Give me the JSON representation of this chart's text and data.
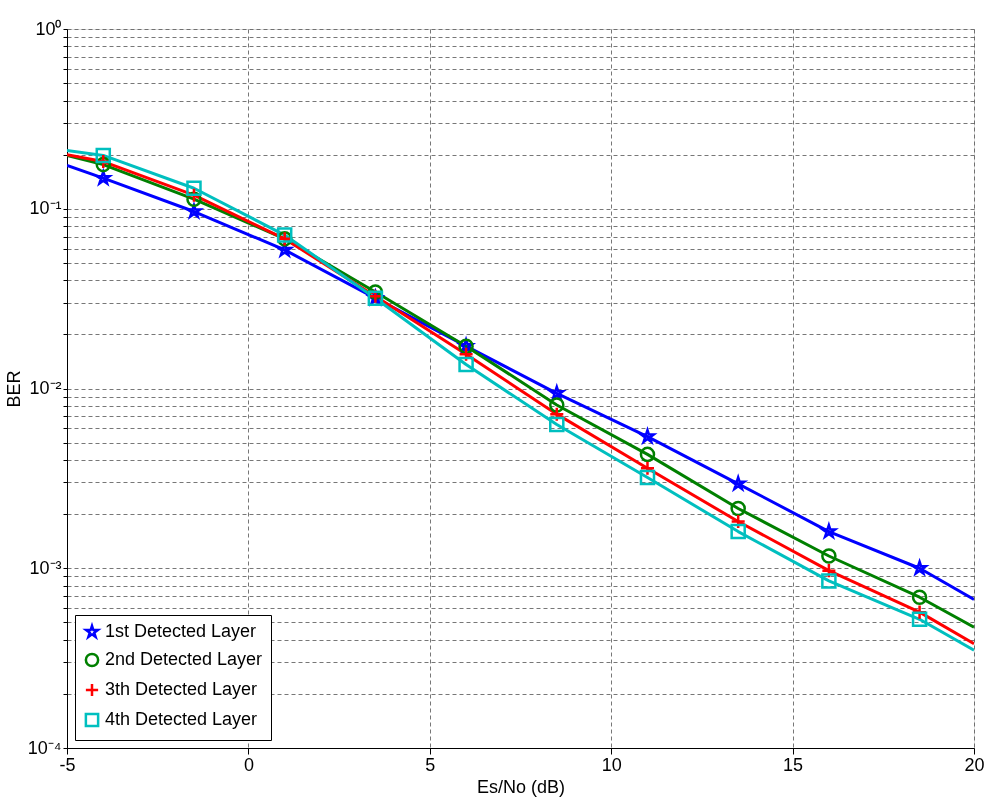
{
  "chart_data": {
    "type": "line",
    "xlabel": "Es/No  (dB)",
    "ylabel": "BER",
    "log": "y",
    "grid": true,
    "legend": "bottom left",
    "line_style": "solid",
    "x": [
      -5,
      -4,
      -1.5,
      1,
      3.5,
      6,
      8.5,
      11,
      13.5,
      16,
      18.5,
      20
    ],
    "xlim": [
      -5,
      20
    ],
    "xticks": [
      -5,
      0,
      5,
      10,
      15,
      20
    ],
    "ylim": [
      0.0001,
      1
    ],
    "yticks": [
      {
        "value": 0.0001,
        "label": "10⁻⁴"
      },
      {
        "value": 0.0002,
        "label": null
      },
      {
        "value": 0.0003,
        "label": null
      },
      {
        "value": 0.0004,
        "label": null
      },
      {
        "value": 0.0005,
        "label": null
      },
      {
        "value": 0.0006,
        "label": null
      },
      {
        "value": 0.0007,
        "label": null
      },
      {
        "value": 0.0008,
        "label": null
      },
      {
        "value": 0.0009,
        "label": null
      },
      {
        "value": 0.001,
        "label": "10⁻³"
      },
      {
        "value": 0.002,
        "label": null
      },
      {
        "value": 0.003,
        "label": null
      },
      {
        "value": 0.004,
        "label": null
      },
      {
        "value": 0.005,
        "label": null
      },
      {
        "value": 0.006,
        "label": null
      },
      {
        "value": 0.007,
        "label": null
      },
      {
        "value": 0.008,
        "label": null
      },
      {
        "value": 0.009,
        "label": null
      },
      {
        "value": 0.01,
        "label": "10⁻²"
      },
      {
        "value": 0.02,
        "label": null
      },
      {
        "value": 0.03,
        "label": null
      },
      {
        "value": 0.04,
        "label": null
      },
      {
        "value": 0.05,
        "label": null
      },
      {
        "value": 0.06,
        "label": null
      },
      {
        "value": 0.07,
        "label": null
      },
      {
        "value": 0.08,
        "label": null
      },
      {
        "value": 0.09,
        "label": null
      },
      {
        "value": 0.1,
        "label": "10⁻¹"
      },
      {
        "value": 0.2,
        "label": null
      },
      {
        "value": 0.3,
        "label": null
      },
      {
        "value": 0.4,
        "label": null
      },
      {
        "value": 0.5,
        "label": null
      },
      {
        "value": 0.6,
        "label": null
      },
      {
        "value": 0.7,
        "label": null
      },
      {
        "value": 0.8,
        "label": null
      },
      {
        "value": 0.9,
        "label": null
      },
      {
        "value": 1,
        "label": "10⁰"
      }
    ],
    "series": [
      {
        "name": "1st  Detected Layer",
        "color": "#0000ff",
        "marker": "star",
        "values": [
          0.174,
          0.148,
          0.0965,
          0.059,
          0.0318,
          0.0172,
          0.0094,
          0.0054,
          0.00295,
          0.0016,
          0.001,
          0.00067
        ]
      },
      {
        "name": "2nd Detected Layer",
        "color": "#008000",
        "marker": "circle",
        "values": [
          0.198,
          0.176,
          0.113,
          0.068,
          0.0344,
          0.0172,
          0.0081,
          0.0043,
          0.00215,
          0.00117,
          0.00069,
          0.00047
        ]
      },
      {
        "name": "3th  Detected Layer",
        "color": "#ff0000",
        "marker": "cross",
        "values": [
          0.2,
          0.183,
          0.119,
          0.068,
          0.0326,
          0.0155,
          0.0072,
          0.0036,
          0.00182,
          0.00097,
          0.00057,
          0.00038
        ]
      },
      {
        "name": "4th  Detected Layer",
        "color": "#00bfbf",
        "marker": "square",
        "values": [
          0.211,
          0.198,
          0.13,
          0.0714,
          0.0318,
          0.0136,
          0.0063,
          0.0032,
          0.0016,
          0.00085,
          0.00052,
          0.00035
        ]
      }
    ]
  }
}
